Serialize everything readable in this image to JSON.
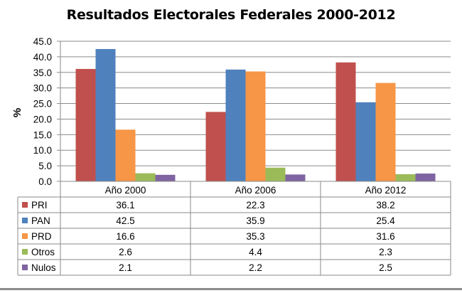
{
  "chart_data": {
    "type": "bar",
    "title": "Resultados Electorales Federales 2000-2012",
    "xlabel": "",
    "ylabel": "%",
    "ylim": [
      0,
      45
    ],
    "yticks": [
      "0.0",
      "5.0",
      "10.0",
      "15.0",
      "20.0",
      "25.0",
      "30.0",
      "35.0",
      "40.0",
      "45.0"
    ],
    "grid": true,
    "legend": "data-table",
    "categories": [
      "Año 2000",
      "Año 2006",
      "Año 2012"
    ],
    "series": [
      {
        "name": "PRI",
        "color": "#c0504d",
        "values": [
          36.1,
          22.3,
          38.2
        ],
        "labels": [
          "36.1",
          "22.3",
          "38.2"
        ]
      },
      {
        "name": "PAN",
        "color": "#4f81bd",
        "values": [
          42.5,
          35.9,
          25.4
        ],
        "labels": [
          "42.5",
          "35.9",
          "25.4"
        ]
      },
      {
        "name": "PRD",
        "color": "#f79646",
        "values": [
          16.6,
          35.3,
          31.6
        ],
        "labels": [
          "16.6",
          "35.3",
          "31.6"
        ]
      },
      {
        "name": "Otros",
        "color": "#9bbb59",
        "values": [
          2.6,
          4.4,
          2.3
        ],
        "labels": [
          "2.6",
          "4.4",
          "2.3"
        ]
      },
      {
        "name": "Nulos",
        "color": "#8064a2",
        "values": [
          2.1,
          2.2,
          2.5
        ],
        "labels": [
          "2.1",
          "2.2",
          "2.5"
        ]
      }
    ]
  }
}
